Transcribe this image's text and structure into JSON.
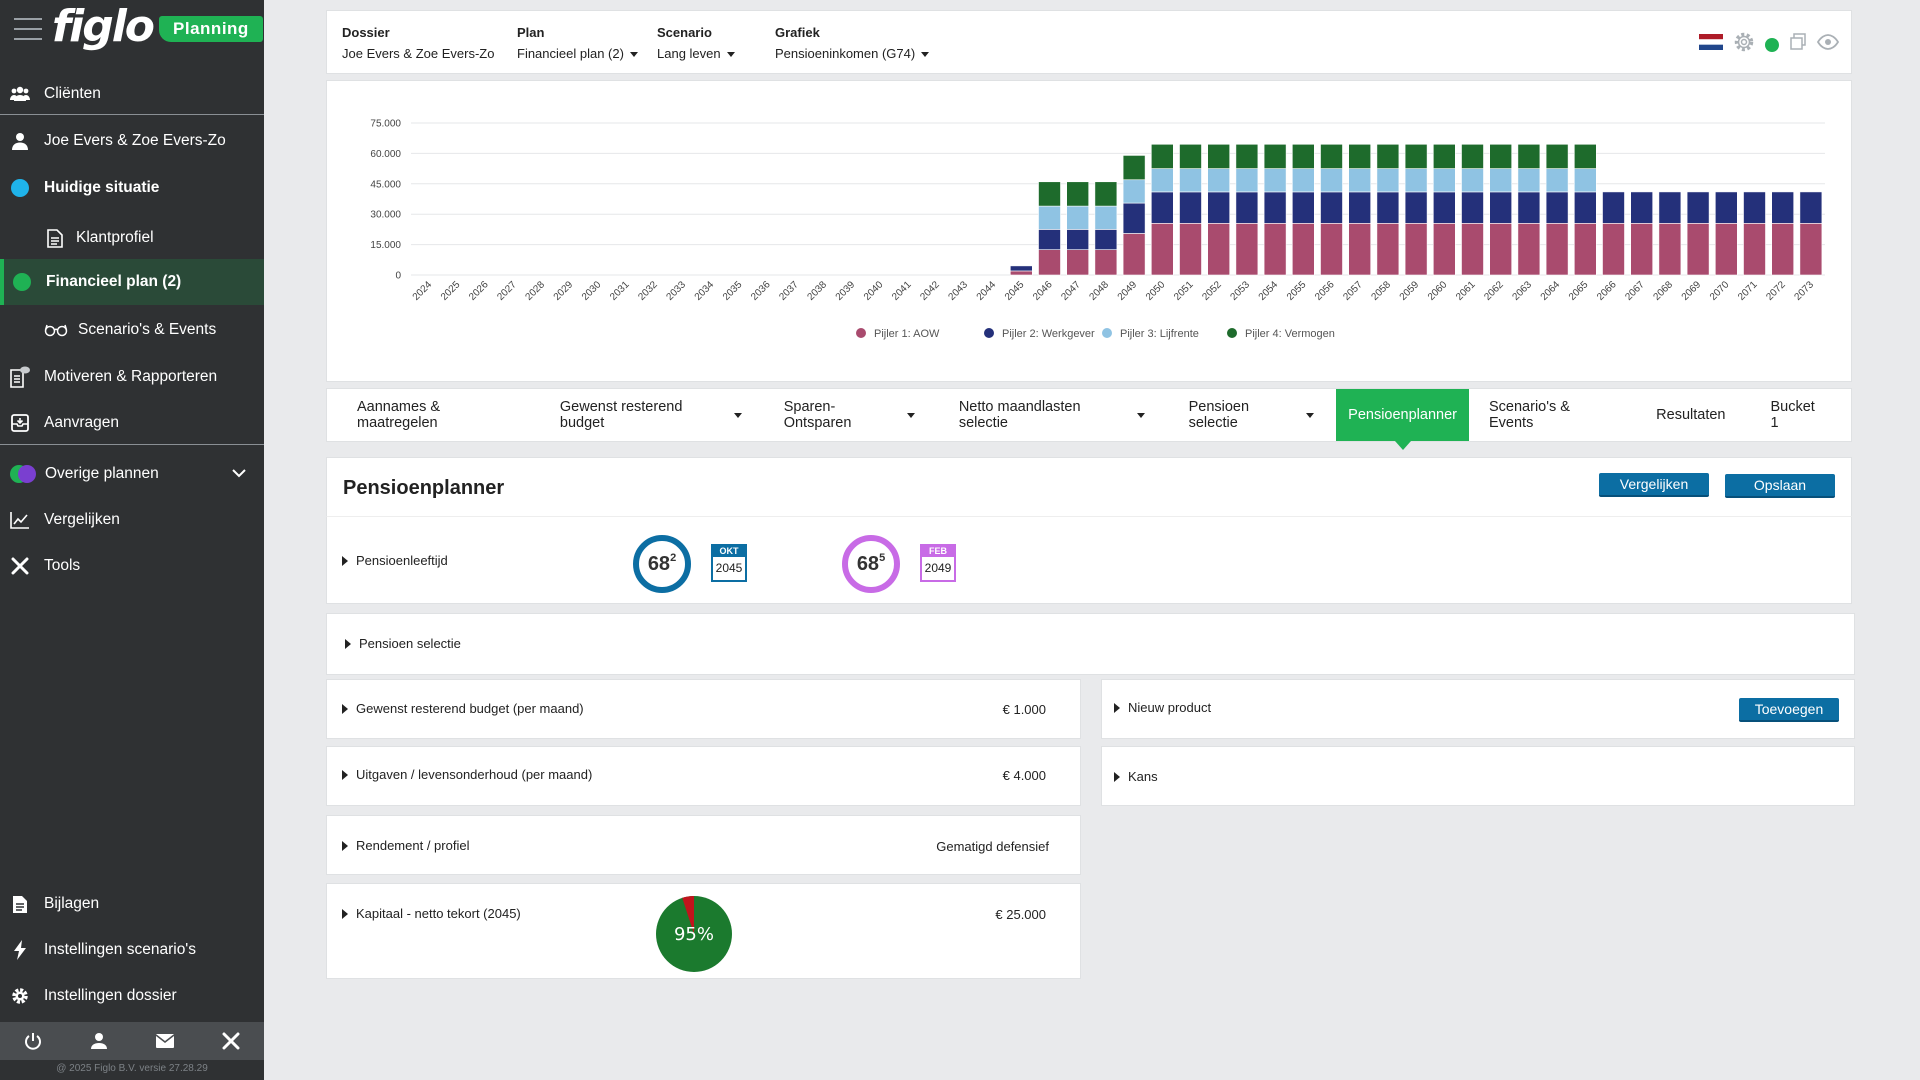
{
  "sidebar": {
    "brand": "figlo",
    "product": "Planning",
    "items": [
      {
        "label": "Cliënten"
      },
      {
        "label": "Joe Evers & Zoe Evers-Zo"
      },
      {
        "label": "Huidige situatie"
      },
      {
        "label": "Klantprofiel"
      },
      {
        "label": "Financieel plan (2)"
      },
      {
        "label": "Scenario's & Events"
      },
      {
        "label": "Motiveren & Rapporteren"
      },
      {
        "label": "Aanvragen"
      },
      {
        "label": "Overige plannen"
      },
      {
        "label": "Vergelijken"
      },
      {
        "label": "Tools"
      },
      {
        "label": "Bijlagen"
      },
      {
        "label": "Instellingen scenario's"
      },
      {
        "label": "Instellingen dossier"
      }
    ],
    "copyright": "@ 2025 Figlo B.V. versie 27.28.29"
  },
  "header": {
    "dossier_label": "Dossier",
    "dossier_value": "Joe Evers & Zoe Evers-Zo",
    "plan_label": "Plan",
    "plan_value": "Financieel plan (2)",
    "scenario_label": "Scenario",
    "scenario_value": "Lang leven",
    "grafiek_label": "Grafiek",
    "grafiek_value": "Pensioeninkomen (G74)"
  },
  "colors": {
    "aow": "#a94b6e",
    "werkgever": "#24307a",
    "lijfrente": "#8fc3e3",
    "vermogen": "#1e6b2c",
    "accent": "#1fb254",
    "button": "#0c6ea3"
  },
  "chart_data": {
    "type": "bar",
    "stacked": true,
    "categories": [
      "2024",
      "2025",
      "2026",
      "2027",
      "2028",
      "2029",
      "2030",
      "2031",
      "2032",
      "2033",
      "2034",
      "2035",
      "2036",
      "2037",
      "2038",
      "2039",
      "2040",
      "2041",
      "2042",
      "2043",
      "2044",
      "2045",
      "2046",
      "2047",
      "2048",
      "2049",
      "2050",
      "2051",
      "2052",
      "2053",
      "2054",
      "2055",
      "2056",
      "2057",
      "2058",
      "2059",
      "2060",
      "2061",
      "2062",
      "2063",
      "2064",
      "2065",
      "2066",
      "2067",
      "2068",
      "2069",
      "2070",
      "2071",
      "2072",
      "2073"
    ],
    "y_ticks": [
      "75.000",
      "60.000",
      "45.000",
      "30.000",
      "15.000",
      "0"
    ],
    "ylim": [
      0,
      75000
    ],
    "grid": true,
    "legend_position": "bottom",
    "series": [
      {
        "name": "Pijler 1: AOW",
        "color": "#a94b6e",
        "values": [
          0,
          0,
          0,
          0,
          0,
          0,
          0,
          0,
          0,
          0,
          0,
          0,
          0,
          0,
          0,
          0,
          0,
          0,
          0,
          0,
          0,
          2000,
          12500,
          12500,
          12500,
          20500,
          25500,
          25500,
          25500,
          25500,
          25500,
          25500,
          25500,
          25500,
          25500,
          25500,
          25500,
          25500,
          25500,
          25500,
          25500,
          25500,
          25500,
          25500,
          25500,
          25500,
          25500,
          25500,
          25500,
          25500
        ]
      },
      {
        "name": "Pijler 2: Werkgever",
        "color": "#24307a",
        "values": [
          0,
          0,
          0,
          0,
          0,
          0,
          0,
          0,
          0,
          0,
          0,
          0,
          0,
          0,
          0,
          0,
          0,
          0,
          0,
          0,
          0,
          2500,
          10000,
          10000,
          10000,
          15000,
          15500,
          15500,
          15500,
          15500,
          15500,
          15500,
          15500,
          15500,
          15500,
          15500,
          15500,
          15500,
          15500,
          15500,
          15500,
          15500,
          15500,
          15500,
          15500,
          15500,
          15500,
          15500,
          15500,
          15500
        ]
      },
      {
        "name": "Pijler 3: Lijfrente",
        "color": "#8fc3e3",
        "values": [
          0,
          0,
          0,
          0,
          0,
          0,
          0,
          0,
          0,
          0,
          0,
          0,
          0,
          0,
          0,
          0,
          0,
          0,
          0,
          0,
          0,
          0,
          11500,
          11500,
          11500,
          11500,
          11500,
          11500,
          11500,
          11500,
          11500,
          11500,
          11500,
          11500,
          11500,
          11500,
          11500,
          11500,
          11500,
          11500,
          11500,
          11500,
          0,
          0,
          0,
          0,
          0,
          0,
          0,
          0
        ]
      },
      {
        "name": "Pijler 4: Vermogen",
        "color": "#1e6b2c",
        "values": [
          0,
          0,
          0,
          0,
          0,
          0,
          0,
          0,
          0,
          0,
          0,
          0,
          0,
          0,
          0,
          0,
          0,
          0,
          0,
          0,
          0,
          0,
          12000,
          12000,
          12000,
          12000,
          12000,
          12000,
          12000,
          12000,
          12000,
          12000,
          12000,
          12000,
          12000,
          12000,
          12000,
          12000,
          12000,
          12000,
          12000,
          12000,
          0,
          0,
          0,
          0,
          0,
          0,
          0,
          0
        ]
      }
    ]
  },
  "tabs": [
    {
      "label": "Aannames & maatregelen",
      "dropdown": false
    },
    {
      "label": "Gewenst resterend budget",
      "dropdown": true
    },
    {
      "label": "Sparen-Ontsparen",
      "dropdown": true
    },
    {
      "label": "Netto maandlasten selectie",
      "dropdown": true
    },
    {
      "label": "Pensioen selectie",
      "dropdown": true
    },
    {
      "label": "Pensioenplanner",
      "dropdown": false,
      "active": true
    },
    {
      "label": "Scenario's & Events",
      "dropdown": false
    },
    {
      "label": "Resultaten",
      "dropdown": false
    },
    {
      "label": "Bucket 1",
      "dropdown": false
    }
  ],
  "planner": {
    "title": "Pensioenplanner",
    "compare_button": "Vergelijken",
    "save_button": "Opslaan",
    "pensioenleeftijd_label": "Pensioenleeftijd",
    "person1": {
      "age": "68",
      "months": "2",
      "month": "OKT",
      "year": "2045",
      "color": "#0c6ea3"
    },
    "person2": {
      "age": "68",
      "months": "5",
      "month": "FEB",
      "year": "2049",
      "color": "#c86be6"
    },
    "pensioen_selectie_label": "Pensioen selectie",
    "budget_label": "Gewenst resterend budget (per maand)",
    "budget_value": "€ 1.000",
    "uitgaven_label": "Uitgaven / levensonderhoud (per maand)",
    "uitgaven_value": "€ 4.000",
    "rendement_label": "Rendement / profiel",
    "rendement_value": "Gematigd defensief",
    "kapitaal_label": "Kapitaal - netto tekort (2045)",
    "kapitaal_pct_text": "95%",
    "kapitaal_pct": 95,
    "kapitaal_value": "€ 25.000",
    "nieuw_product_label": "Nieuw product",
    "toevoegen_button": "Toevoegen",
    "kans_label": "Kans"
  }
}
